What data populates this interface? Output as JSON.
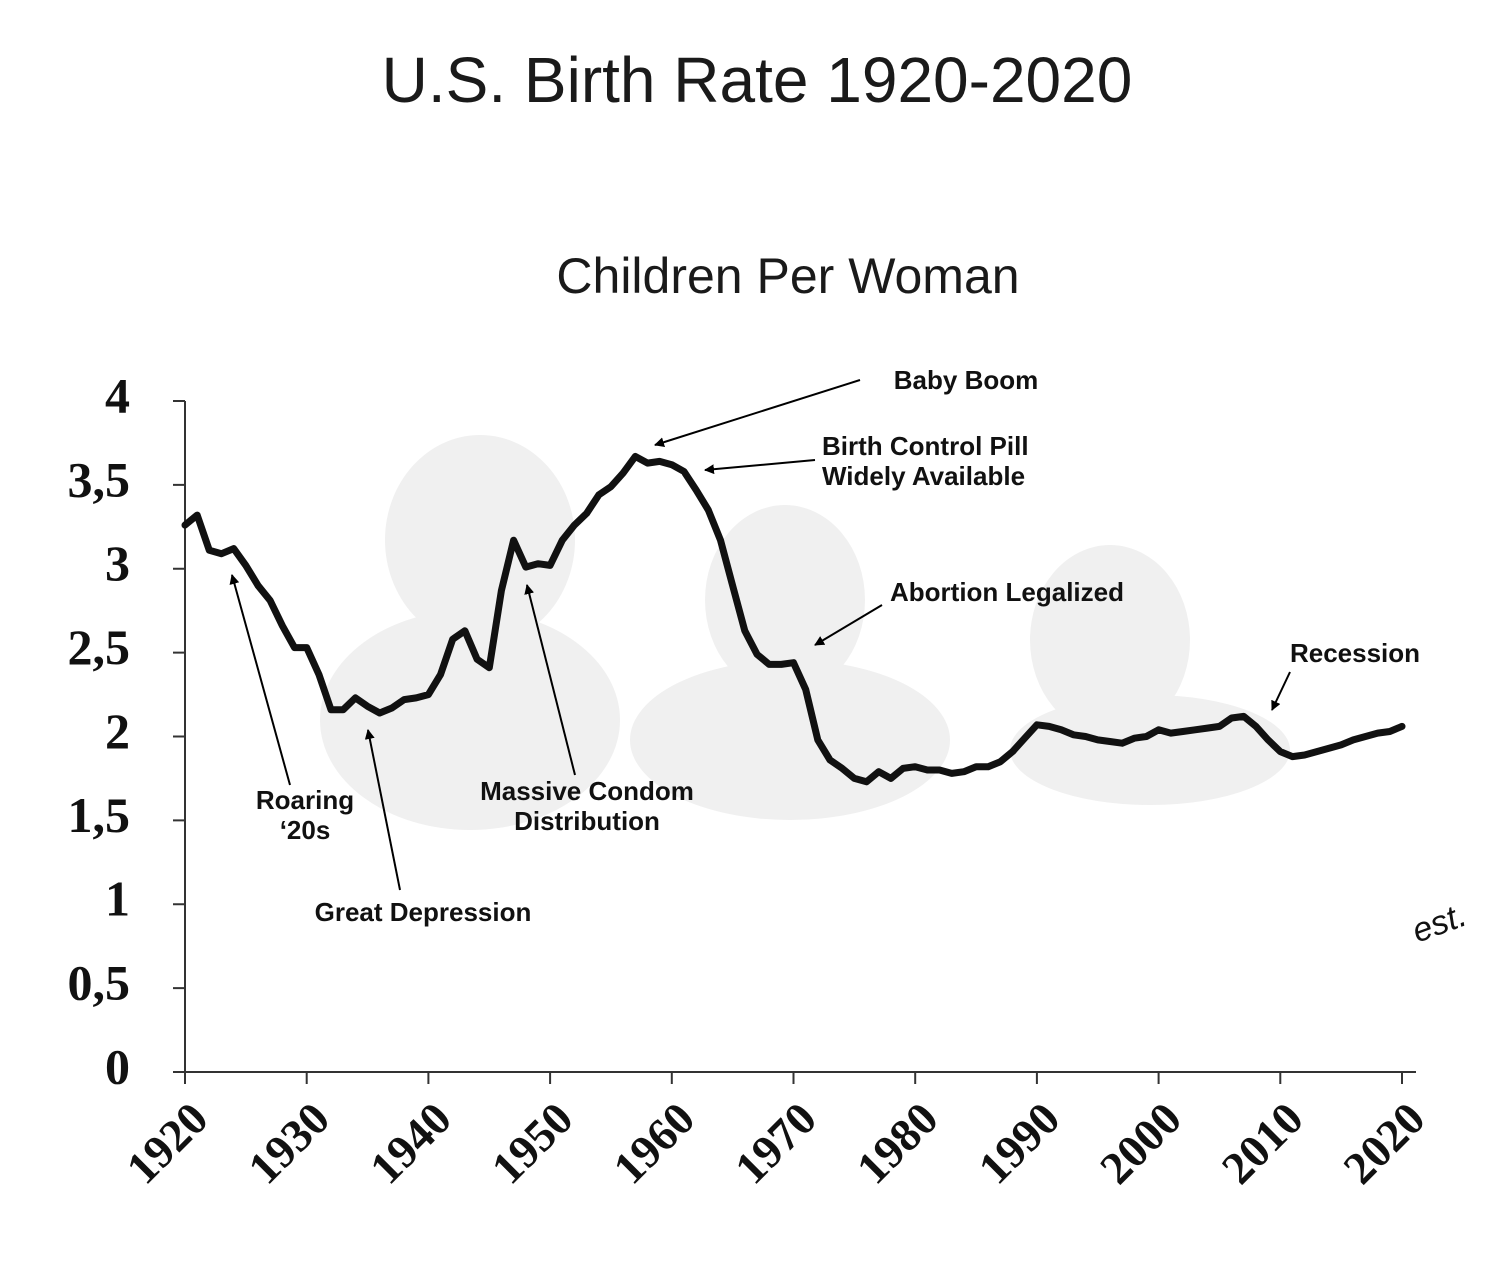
{
  "chart_data": {
    "type": "line",
    "title": "U.S. Birth Rate 1920-2020",
    "subtitle": "Children Per Woman",
    "x": [
      1920,
      1921,
      1922,
      1923,
      1924,
      1925,
      1926,
      1927,
      1928,
      1929,
      1930,
      1931,
      1932,
      1933,
      1934,
      1935,
      1936,
      1937,
      1938,
      1939,
      1940,
      1941,
      1942,
      1943,
      1944,
      1945,
      1946,
      1947,
      1948,
      1949,
      1950,
      1951,
      1952,
      1953,
      1954,
      1955,
      1956,
      1957,
      1958,
      1959,
      1960,
      1961,
      1962,
      1963,
      1964,
      1965,
      1966,
      1967,
      1968,
      1969,
      1970,
      1971,
      1972,
      1973,
      1974,
      1975,
      1976,
      1977,
      1978,
      1979,
      1980,
      1981,
      1982,
      1983,
      1984,
      1985,
      1986,
      1987,
      1988,
      1989,
      1990,
      1991,
      1992,
      1993,
      1994,
      1995,
      1996,
      1997,
      1998,
      1999,
      2000,
      2001,
      2002,
      2003,
      2004,
      2005,
      2006,
      2007,
      2008,
      2009,
      2010,
      2011,
      2012,
      2013,
      2014,
      2015,
      2016,
      2017,
      2018,
      2019,
      2020
    ],
    "values": [
      3.26,
      3.32,
      3.11,
      3.09,
      3.12,
      3.02,
      2.9,
      2.81,
      2.66,
      2.53,
      2.53,
      2.37,
      2.16,
      2.16,
      2.23,
      2.18,
      2.14,
      2.17,
      2.22,
      2.23,
      2.25,
      2.37,
      2.58,
      2.63,
      2.46,
      2.41,
      2.87,
      3.17,
      3.01,
      3.03,
      3.02,
      3.17,
      3.26,
      3.33,
      3.44,
      3.49,
      3.57,
      3.67,
      3.63,
      3.64,
      3.62,
      3.58,
      3.47,
      3.35,
      3.17,
      2.9,
      2.63,
      2.49,
      2.43,
      2.43,
      2.44,
      2.28,
      1.98,
      1.86,
      1.81,
      1.75,
      1.73,
      1.79,
      1.75,
      1.81,
      1.82,
      1.8,
      1.8,
      1.78,
      1.79,
      1.82,
      1.82,
      1.85,
      1.91,
      1.99,
      2.07,
      2.06,
      2.04,
      2.01,
      2.0,
      1.98,
      1.97,
      1.96,
      1.99,
      2.0,
      2.04,
      2.02,
      2.03,
      2.04,
      2.05,
      2.06,
      2.11,
      2.12,
      2.06,
      1.98,
      1.91,
      1.88,
      1.89,
      1.91,
      1.93,
      1.95,
      1.98,
      2.0,
      2.02,
      2.03,
      2.06
    ],
    "color": "#111111",
    "xlim": [
      1920,
      2020
    ],
    "xticks": [
      1920,
      1930,
      1940,
      1950,
      1960,
      1970,
      1980,
      1990,
      2000,
      2010,
      2020
    ],
    "ylim": [
      0,
      4
    ],
    "yticks": [
      0,
      {
        "value": 0.5,
        "label": "0,5"
      },
      1,
      {
        "value": 1.5,
        "label": "1,5"
      },
      2,
      {
        "value": 2.5,
        "label": "2,5"
      },
      3,
      {
        "value": 3.5,
        "label": "3,5"
      },
      4
    ],
    "annotations": [
      [
        "Baby Boom"
      ],
      [
        "Birth Control Pill",
        "Widely Available"
      ],
      [
        "Abortion Legalized"
      ],
      [
        "Recession"
      ],
      [
        "Roaring",
        "‘20s"
      ],
      [
        "Great Depression"
      ],
      [
        "Massive Condom",
        "Distribution"
      ],
      [
        "est."
      ]
    ]
  }
}
